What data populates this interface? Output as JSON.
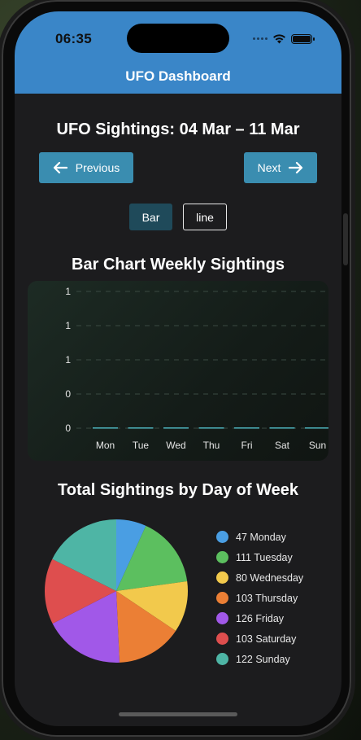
{
  "status": {
    "time": "06:35"
  },
  "app": {
    "title": "UFO Dashboard"
  },
  "week": {
    "title": "UFO Sightings: 04 Mar – 11 Mar"
  },
  "nav": {
    "previous_label": "Previous",
    "next_label": "Next"
  },
  "toggle": {
    "bar_label": "Bar",
    "line_label": "line",
    "selected": "bar"
  },
  "bar_chart": {
    "title": "Bar Chart Weekly Sightings"
  },
  "pie_chart": {
    "title": "Total Sightings by Day of Week"
  },
  "colors": {
    "header": "#3a86c8",
    "button": "#3a8db0",
    "toggle_active": "#1f4a5a",
    "bar": "#4fb8c2"
  },
  "chart_data": [
    {
      "type": "bar",
      "title": "Bar Chart Weekly Sightings",
      "categories": [
        "Mon",
        "Tue",
        "Wed",
        "Thu",
        "Fri",
        "Sat",
        "Sun"
      ],
      "values": [
        0,
        0,
        0,
        0,
        0,
        0,
        0
      ],
      "y_tick_labels": [
        "1",
        "1",
        "1",
        "0",
        "0"
      ],
      "ylim": [
        0,
        1
      ],
      "grid": true,
      "xlabel": "",
      "ylabel": ""
    },
    {
      "type": "pie",
      "title": "Total Sightings by Day of Week",
      "labels": [
        "Monday",
        "Tuesday",
        "Wednesday",
        "Thursday",
        "Friday",
        "Saturday",
        "Sunday"
      ],
      "values": [
        47,
        111,
        80,
        103,
        126,
        103,
        122
      ],
      "colors": [
        "#4a9ee3",
        "#5cbf5f",
        "#f2c94c",
        "#eb7f35",
        "#a158e8",
        "#de4e4e",
        "#4eb5a5"
      ],
      "legend_placement": "right"
    }
  ]
}
